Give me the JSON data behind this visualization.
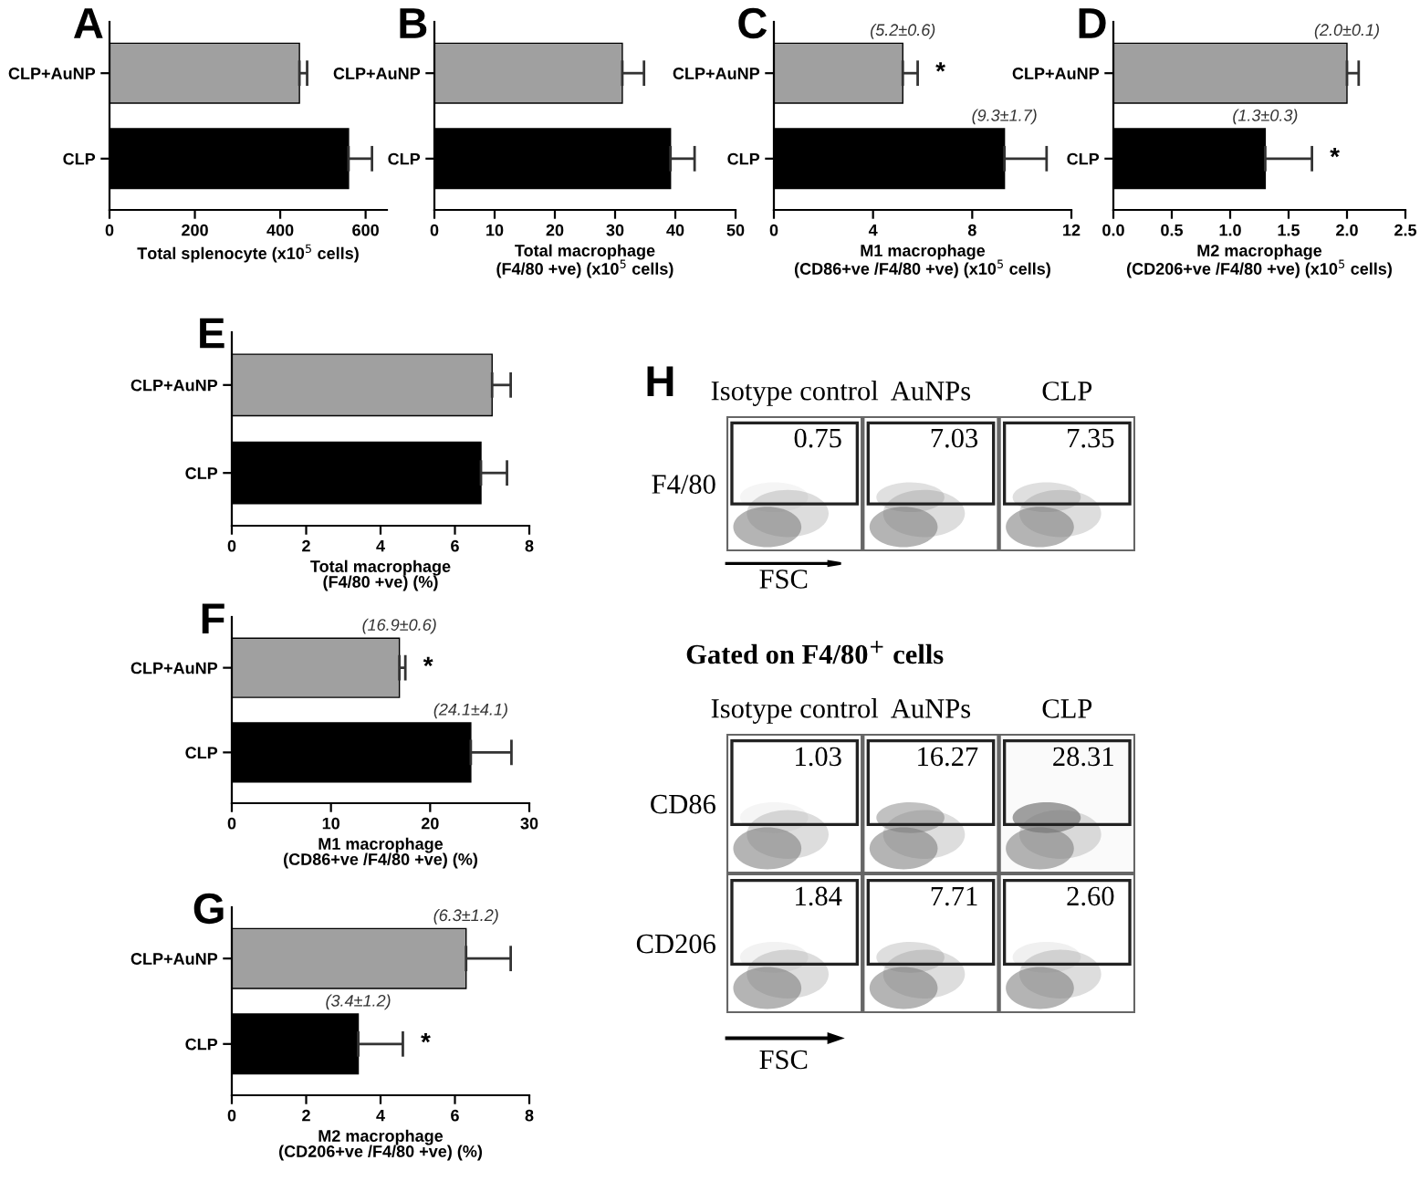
{
  "chart_data": [
    {
      "type": "bar",
      "orientation": "horizontal",
      "title": "A",
      "xlabel": "Total splenocyte (x10$^{5}$ cells)",
      "categories": [
        "CLP+AuNP",
        "CLP"
      ],
      "values": [
        445,
        560
      ],
      "colors": [
        "#a0a0a0",
        "#000000"
      ],
      "errors": [
        [
          445,
          463
        ],
        [
          560,
          615
        ]
      ],
      "xlim": [
        0,
        650
      ],
      "xticks": [
        0,
        200,
        400,
        600
      ],
      "grid": false,
      "legend": false
    },
    {
      "type": "bar",
      "orientation": "horizontal",
      "title": "B",
      "xlabel": "Total macrophage\n(F4/80 +ve) (x10$^{5}$ cells)",
      "categories": [
        "CLP+AuNP",
        "CLP"
      ],
      "values": [
        31.2,
        39.2
      ],
      "colors": [
        "#a0a0a0",
        "#000000"
      ],
      "errors": [
        [
          31.2,
          34.8
        ],
        [
          39.2,
          43.2
        ]
      ],
      "xlim": [
        0,
        50
      ],
      "xticks": [
        0,
        10,
        20,
        30,
        40,
        50
      ],
      "grid": false,
      "legend": false
    },
    {
      "type": "bar",
      "orientation": "horizontal",
      "title": "C",
      "xlabel": "M1 macrophage\n(CD86+ve /F4/80 +ve) (x10$^{5}$ cells)",
      "categories": [
        "CLP+AuNP",
        "CLP"
      ],
      "values": [
        5.2,
        9.3
      ],
      "colors": [
        "#a0a0a0",
        "#000000"
      ],
      "errors": [
        [
          5.2,
          5.8
        ],
        [
          9.3,
          11.0
        ]
      ],
      "value_labels": [
        "(5.2±0.6)",
        "(9.3±1.7)"
      ],
      "annotations": [
        "*"
      ],
      "xlim": [
        0,
        12
      ],
      "xticks": [
        0,
        4,
        8,
        12
      ],
      "grid": false,
      "legend": false
    },
    {
      "type": "bar",
      "orientation": "horizontal",
      "title": "D",
      "xlabel": "M2 macrophage\n(CD206+ve /F4/80 +ve) (x10$^{5}$ cells)",
      "categories": [
        "CLP+AuNP",
        "CLP"
      ],
      "values": [
        2.0,
        1.3
      ],
      "colors": [
        "#a0a0a0",
        "#000000"
      ],
      "errors": [
        [
          2.0,
          2.1
        ],
        [
          1.3,
          1.7
        ]
      ],
      "value_labels": [
        "(2.0±0.1)",
        "(1.3±0.3)"
      ],
      "annotations": [
        "*"
      ],
      "xlim": [
        0,
        2.5
      ],
      "xticks": [
        {
          "value": 0,
          "label": "0.0"
        },
        0.5,
        {
          "value": 1,
          "label": "1.0"
        },
        1.5,
        {
          "value": 2,
          "label": "2.0"
        },
        2.5
      ],
      "grid": false,
      "legend": false
    },
    {
      "type": "bar",
      "orientation": "horizontal",
      "title": "E",
      "xlabel": "Total macrophage\n(F4/80 +ve) (%)",
      "categories": [
        "CLP+AuNP",
        "CLP"
      ],
      "values": [
        7.0,
        6.7
      ],
      "colors": [
        "#a0a0a0",
        "#000000"
      ],
      "errors": [
        [
          7.0,
          7.5
        ],
        [
          6.7,
          7.4
        ]
      ],
      "xlim": [
        0,
        8
      ],
      "xticks": [
        0,
        2,
        4,
        6,
        8
      ],
      "grid": false,
      "legend": false
    },
    {
      "type": "bar",
      "orientation": "horizontal",
      "title": "F",
      "xlabel": "M1 macrophage\n(CD86+ve /F4/80 +ve) (%)",
      "categories": [
        "CLP+AuNP",
        "CLP"
      ],
      "values": [
        16.9,
        24.1
      ],
      "colors": [
        "#a0a0a0",
        "#000000"
      ],
      "errors": [
        [
          16.9,
          17.5
        ],
        [
          24.1,
          28.2
        ]
      ],
      "value_labels": [
        "(16.9±0.6)",
        "(24.1±4.1)"
      ],
      "annotations": [
        "*"
      ],
      "xlim": [
        0,
        30
      ],
      "xticks": [
        0,
        10,
        20,
        30
      ],
      "grid": false,
      "legend": false
    },
    {
      "type": "bar",
      "orientation": "horizontal",
      "title": "G",
      "xlabel": "M2 macrophage\n(CD206+ve /F4/80 +ve) (%)",
      "categories": [
        "CLP+AuNP",
        "CLP"
      ],
      "values": [
        6.3,
        3.4
      ],
      "colors": [
        "#a0a0a0",
        "#000000"
      ],
      "errors": [
        [
          6.3,
          7.5
        ],
        [
          3.4,
          4.6
        ]
      ],
      "value_labels": [
        "(6.3±1.2)",
        "(3.4±1.2)"
      ],
      "annotations": [
        "*"
      ],
      "xlim": [
        0,
        8
      ],
      "xticks": [
        0,
        2,
        4,
        6,
        8
      ],
      "grid": false,
      "legend": false
    },
    {
      "type": "heatmap",
      "title": "H",
      "xlabel": "FSC",
      "categories": [
        "Isotype control",
        "AuNPs",
        "CLP"
      ],
      "y_categories": [
        "F4/80"
      ],
      "cells": [
        [
          0.75,
          7.03,
          7.35
        ]
      ],
      "cell_labels": [
        [
          "0.75",
          "7.03",
          "7.35"
        ]
      ]
    },
    {
      "type": "heatmap",
      "title": "Gated on F4/80$^{+}$ cells",
      "xlabel": "FSC",
      "categories": [
        "Isotype control",
        "AuNPs",
        "CLP"
      ],
      "y_categories": [
        "CD86",
        "CD206"
      ],
      "cells": [
        [
          1.03,
          16.27,
          28.31
        ],
        [
          1.84,
          7.71,
          2.6
        ]
      ],
      "cell_labels": [
        [
          "1.03",
          "16.27",
          "28.31"
        ],
        [
          "1.84",
          "7.71",
          "2.60"
        ]
      ]
    }
  ]
}
